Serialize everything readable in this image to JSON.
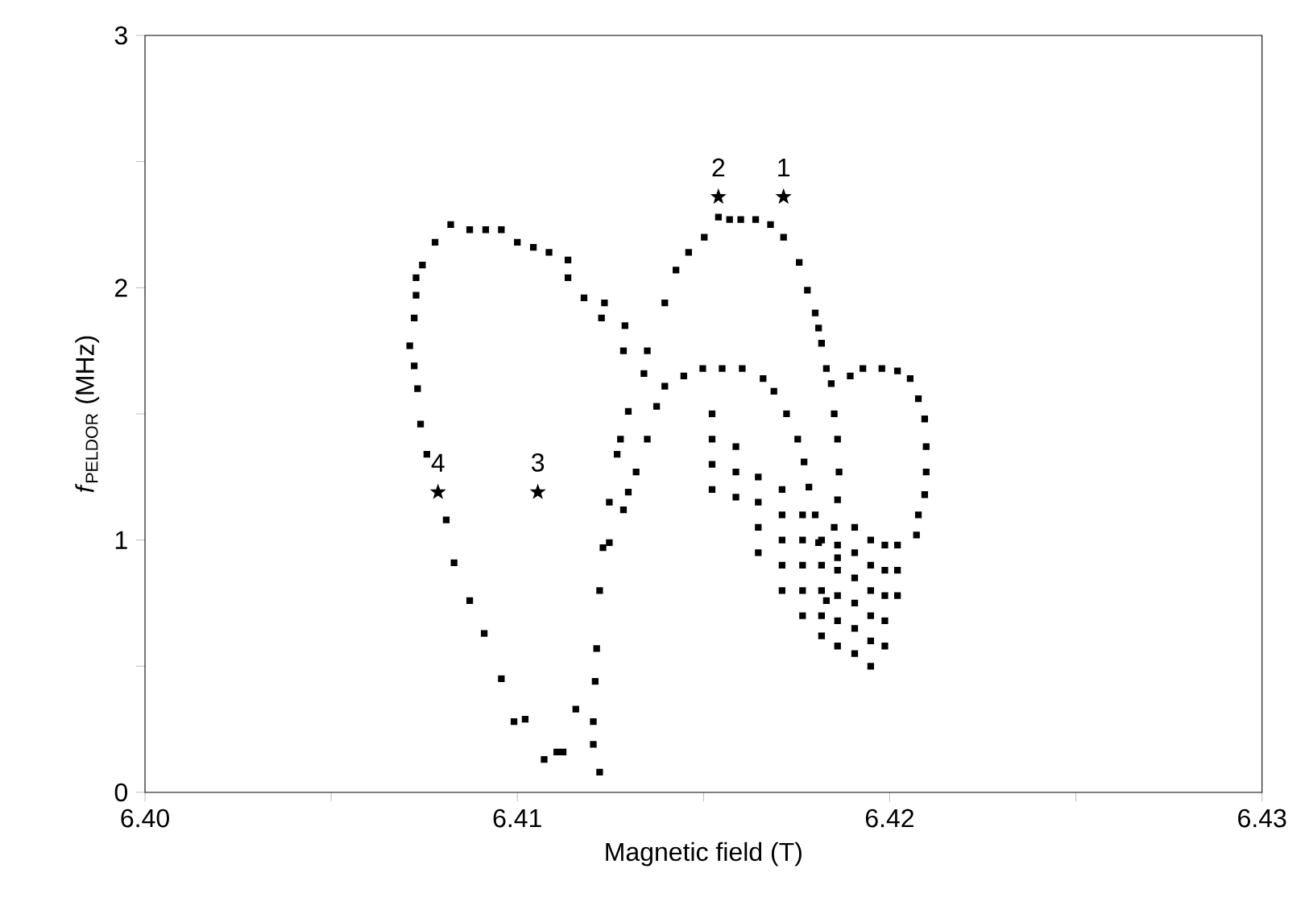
{
  "chart_data": {
    "type": "scatter",
    "xlabel": "Magnetic field (T)",
    "ylabel": "*f*$_{PELDOR}$ (MHz)",
    "xlim": [
      6.4,
      6.43
    ],
    "ylim": [
      0,
      3
    ],
    "xticks": [
      {
        "value": 6.4,
        "label": "6.40"
      },
      {
        "value": 6.405,
        "label": null
      },
      {
        "value": 6.41,
        "label": "6.41"
      },
      {
        "value": 6.415,
        "label": null
      },
      {
        "value": 6.42,
        "label": "6.42"
      },
      {
        "value": 6.425,
        "label": null
      },
      {
        "value": 6.43,
        "label": "6.43"
      }
    ],
    "yticks": [
      0,
      {
        "value": 0.5,
        "label": null
      },
      1,
      {
        "value": 1.5,
        "label": null
      },
      2,
      {
        "value": 2.5,
        "label": null
      },
      3
    ],
    "marker": "square",
    "series": [
      {
        "color": "#000000",
        "x": [
          6.41106,
          6.40991,
          6.40957,
          6.40911,
          6.40872,
          6.4083,
          6.40809,
          6.40757,
          6.4074,
          6.40732,
          6.40723,
          6.40711,
          6.40723,
          6.40728,
          6.40728,
          6.40745,
          6.40779,
          6.40821,
          6.40872,
          6.40915,
          6.40957,
          6.41,
          6.41043,
          6.41085,
          6.41136,
          6.41136,
          6.41179,
          6.41234,
          6.41226,
          6.41289,
          6.41285,
          6.41349,
          6.4134
        ],
        "values": [
          0.16,
          0.28,
          0.45,
          0.63,
          0.76,
          0.91,
          1.08,
          1.34,
          1.46,
          1.6,
          1.69,
          1.77,
          1.88,
          1.97,
          2.04,
          2.09,
          2.18,
          2.25,
          2.23,
          2.23,
          2.23,
          2.18,
          2.16,
          2.14,
          2.11,
          2.04,
          1.96,
          1.94,
          1.88,
          1.85,
          1.75,
          1.75,
          1.66
        ]
      },
      {
        "color": "#000000",
        "x": [
          6.41298,
          6.41277,
          6.41268,
          6.41247,
          6.4123,
          6.41221,
          6.41213,
          6.41209,
          6.41204,
          6.41204,
          6.41221,
          6.41157,
          6.41123,
          6.41072,
          6.41021
        ],
        "values": [
          1.51,
          1.4,
          1.34,
          1.15,
          0.97,
          0.8,
          0.57,
          0.44,
          0.28,
          0.19,
          0.08,
          0.33,
          0.16,
          0.13,
          0.29
        ]
      },
      {
        "color": "#000000",
        "x": [
          6.41396,
          6.41426,
          6.4146,
          6.41502,
          6.4154,
          6.4157,
          6.416,
          6.4164,
          6.4168,
          6.41715,
          6.41757,
          6.41779,
          6.418,
          6.41809,
          6.41817,
          6.4183,
          6.41843,
          6.41851,
          6.4186,
          6.41864,
          6.4186,
          6.41851,
          6.4186
        ],
        "values": [
          1.94,
          2.07,
          2.14,
          2.2,
          2.28,
          2.27,
          2.27,
          2.27,
          2.25,
          2.2,
          2.1,
          1.99,
          1.9,
          1.84,
          1.78,
          1.68,
          1.62,
          1.5,
          1.4,
          1.27,
          1.16,
          1.05,
          0.93
        ]
      },
      {
        "color": "#000000",
        "x": [
          6.41247,
          6.41285,
          6.41298,
          6.41319,
          6.41349,
          6.41374,
          6.41396,
          6.41447,
          6.41498,
          6.4155,
          6.41604,
          6.4166,
          6.41689,
          6.41723,
          6.41753,
          6.4177,
          6.41783,
          6.418,
          6.41809,
          6.41817,
          6.4183
        ],
        "values": [
          0.99,
          1.12,
          1.19,
          1.27,
          1.4,
          1.53,
          1.61,
          1.65,
          1.68,
          1.68,
          1.68,
          1.64,
          1.59,
          1.5,
          1.4,
          1.31,
          1.21,
          1.1,
          0.99,
          null,
          0.76
        ]
      },
      {
        "color": "#000000",
        "x": [
          6.41894,
          6.41928,
          6.41979,
          6.42021,
          6.42055,
          6.42077,
          6.42094,
          6.42098,
          6.42098,
          6.42094,
          6.42077,
          6.42072
        ],
        "values": [
          1.65,
          1.68,
          1.68,
          1.67,
          1.64,
          1.56,
          1.48,
          1.37,
          1.27,
          1.18,
          1.1,
          1.02
        ]
      },
      {
        "color": "#000000",
        "x": [
          6.41523,
          6.41523,
          6.41523,
          6.41523,
          6.41587,
          6.41587,
          6.41587,
          6.41647,
          6.41647,
          6.41647,
          6.41647,
          6.41711,
          6.41711,
          6.41711,
          6.41711,
          6.41711,
          6.41766,
          6.41766,
          6.41766,
          6.41766,
          6.41766,
          6.41817,
          6.41817,
          6.41817,
          6.41817,
          6.41817,
          6.4186,
          6.4186,
          6.4186,
          6.4186,
          6.4186,
          6.41906,
          6.41906,
          6.41906,
          6.41906,
          6.41906,
          6.41906,
          6.41949,
          6.41949,
          6.41949,
          6.41949,
          6.41949,
          6.41949,
          6.41987,
          6.41987,
          6.41987,
          6.41987,
          6.41987,
          6.42021,
          6.42021,
          6.42021
        ],
        "values": [
          1.5,
          1.4,
          1.3,
          1.2,
          1.37,
          1.27,
          1.17,
          1.25,
          1.15,
          1.05,
          0.95,
          1.2,
          1.1,
          1.0,
          0.9,
          0.8,
          1.1,
          1.0,
          0.9,
          0.8,
          0.7,
          1.0,
          0.9,
          0.8,
          0.7,
          0.62,
          0.98,
          0.88,
          0.78,
          0.68,
          0.58,
          1.05,
          0.95,
          0.85,
          0.75,
          0.65,
          0.55,
          1.0,
          0.9,
          0.8,
          0.7,
          0.6,
          0.5,
          0.98,
          0.88,
          0.78,
          0.68,
          0.58,
          0.98,
          0.88,
          0.78
        ]
      },
      {
        "color": "#000000",
        "marker": "star",
        "x": [
          6.41715,
          6.4154,
          6.41055,
          6.40787
        ],
        "values": [
          2.36,
          2.36,
          1.19,
          1.19
        ]
      }
    ],
    "annotations": [
      {
        "text": "1",
        "x": 6.41715,
        "y": 2.36
      },
      {
        "text": "2",
        "x": 6.4154,
        "y": 2.36
      },
      {
        "text": "3",
        "x": 6.41055,
        "y": 1.19
      },
      {
        "text": "4",
        "x": 6.40787,
        "y": 1.19
      }
    ]
  }
}
